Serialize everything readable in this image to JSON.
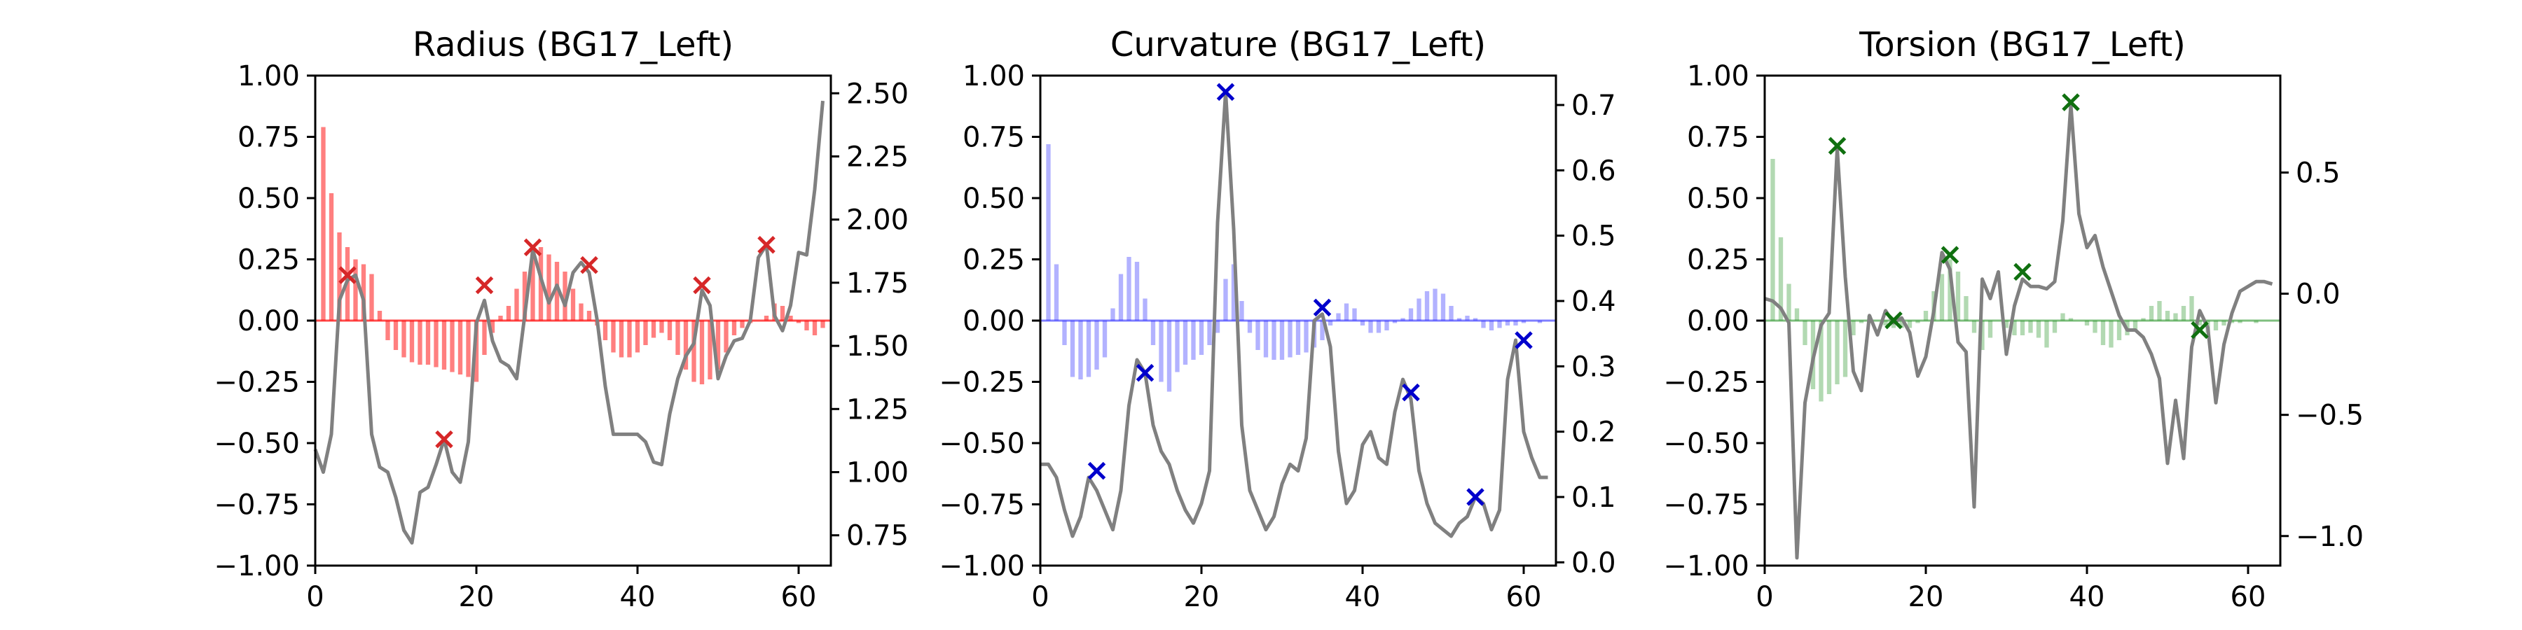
{
  "chart_data": [
    {
      "type": "bar",
      "title": "Radius (BG17_Left)",
      "color": "#ff0000",
      "bar_alpha": 0.5,
      "xlim": [
        0,
        64
      ],
      "x_ticks": [
        "0",
        "20",
        "40",
        "60"
      ],
      "ylim": [
        -1.0,
        1.0
      ],
      "y_ticks": [
        "−1.00",
        "−0.75",
        "−0.50",
        "−0.25",
        "0.00",
        "0.25",
        "0.50",
        "0.75",
        "1.00"
      ],
      "y2lim": [
        0.63,
        2.57
      ],
      "y2_ticks": [
        "0.75",
        "1.00",
        "1.25",
        "1.50",
        "1.75",
        "2.00",
        "2.25",
        "2.50"
      ],
      "bars": [
        0.0,
        0.79,
        0.52,
        0.36,
        0.3,
        0.25,
        0.23,
        0.19,
        0.04,
        -0.08,
        -0.12,
        -0.15,
        -0.17,
        -0.18,
        -0.18,
        -0.19,
        -0.2,
        -0.21,
        -0.22,
        -0.23,
        -0.25,
        -0.14,
        -0.05,
        0.02,
        0.06,
        0.13,
        0.2,
        0.29,
        0.3,
        0.27,
        0.24,
        0.2,
        0.13,
        0.07,
        0.04,
        -0.02,
        -0.08,
        -0.13,
        -0.15,
        -0.15,
        -0.13,
        -0.1,
        -0.07,
        -0.05,
        -0.08,
        -0.14,
        -0.2,
        -0.25,
        -0.26,
        -0.24,
        -0.2,
        -0.13,
        -0.06,
        -0.03,
        -0.01,
        0.0,
        0.02,
        0.07,
        0.06,
        0.02,
        -0.01,
        -0.04,
        -0.06,
        -0.03
      ],
      "line": [
        1.09,
        1.0,
        1.15,
        1.68,
        1.76,
        1.78,
        1.68,
        1.15,
        1.02,
        1.0,
        0.9,
        0.77,
        0.72,
        0.92,
        0.94,
        1.03,
        1.13,
        1.0,
        0.96,
        1.12,
        1.59,
        1.68,
        1.52,
        1.44,
        1.42,
        1.37,
        1.62,
        1.88,
        1.77,
        1.67,
        1.74,
        1.66,
        1.79,
        1.83,
        1.79,
        1.6,
        1.34,
        1.15,
        1.15,
        1.15,
        1.15,
        1.12,
        1.04,
        1.03,
        1.23,
        1.37,
        1.46,
        1.51,
        1.72,
        1.66,
        1.37,
        1.46,
        1.52,
        1.53,
        1.6,
        1.85,
        1.9,
        1.62,
        1.56,
        1.66,
        1.87,
        1.86,
        2.12,
        2.47
      ],
      "markers_x": [
        4,
        16,
        21,
        27,
        34,
        48,
        56
      ],
      "markers_y2": [
        1.78,
        1.13,
        1.74,
        1.89,
        1.82,
        1.74,
        1.9
      ],
      "xlabel": "",
      "ylabel": ""
    },
    {
      "type": "bar",
      "title": "Curvature (BG17_Left)",
      "color": "#0000ff",
      "bar_alpha": 0.3,
      "xlim": [
        0,
        64
      ],
      "x_ticks": [
        "0",
        "20",
        "40",
        "60"
      ],
      "ylim": [
        -1.0,
        1.0
      ],
      "y_ticks": [
        "−1.00",
        "−0.75",
        "−0.50",
        "−0.25",
        "0.00",
        "0.25",
        "0.50",
        "0.75",
        "1.00"
      ],
      "y2lim": [
        -0.005,
        0.745
      ],
      "y2_ticks": [
        "0.0",
        "0.1",
        "0.2",
        "0.3",
        "0.4",
        "0.5",
        "0.6",
        "0.7"
      ],
      "bars": [
        0.0,
        0.72,
        0.23,
        -0.1,
        -0.23,
        -0.24,
        -0.23,
        -0.2,
        -0.15,
        0.05,
        0.19,
        0.26,
        0.24,
        0.09,
        -0.1,
        -0.25,
        -0.29,
        -0.21,
        -0.18,
        -0.16,
        -0.14,
        -0.1,
        -0.05,
        0.17,
        0.23,
        0.08,
        -0.05,
        -0.12,
        -0.15,
        -0.16,
        -0.16,
        -0.15,
        -0.14,
        -0.13,
        -0.11,
        -0.08,
        -0.02,
        0.03,
        0.07,
        0.05,
        -0.02,
        -0.05,
        -0.05,
        -0.04,
        -0.01,
        0.01,
        0.05,
        0.09,
        0.12,
        0.13,
        0.11,
        0.06,
        0.01,
        0.02,
        0.01,
        -0.03,
        -0.04,
        -0.03,
        -0.02,
        -0.02,
        -0.01,
        0.0,
        -0.01,
        0.0
      ],
      "line": [
        0.15,
        0.15,
        0.13,
        0.08,
        0.04,
        0.07,
        0.13,
        0.11,
        0.08,
        0.05,
        0.11,
        0.24,
        0.31,
        0.29,
        0.21,
        0.17,
        0.15,
        0.11,
        0.08,
        0.06,
        0.09,
        0.14,
        0.52,
        0.72,
        0.51,
        0.21,
        0.11,
        0.08,
        0.05,
        0.07,
        0.12,
        0.15,
        0.14,
        0.19,
        0.37,
        0.38,
        0.33,
        0.17,
        0.09,
        0.11,
        0.18,
        0.2,
        0.16,
        0.15,
        0.23,
        0.28,
        0.25,
        0.14,
        0.09,
        0.06,
        0.05,
        0.04,
        0.06,
        0.07,
        0.1,
        0.09,
        0.05,
        0.08,
        0.28,
        0.34,
        0.2,
        0.16,
        0.13,
        0.13
      ],
      "markers_x": [
        7,
        13,
        23,
        35,
        46,
        54,
        60
      ],
      "markers_y2": [
        0.14,
        0.29,
        0.72,
        0.39,
        0.26,
        0.1,
        0.34
      ],
      "xlabel": "",
      "ylabel": ""
    },
    {
      "type": "bar",
      "title": "Torsion (BG17_Left)",
      "color": "#008000",
      "bar_alpha": 0.3,
      "xlim": [
        0,
        64
      ],
      "x_ticks": [
        "0",
        "20",
        "40",
        "60"
      ],
      "ylim": [
        -1.0,
        1.0
      ],
      "y_ticks": [
        "−1.00",
        "−0.75",
        "−0.50",
        "−0.25",
        "0.00",
        "0.25",
        "0.50",
        "0.75",
        "1.00"
      ],
      "y2lim": [
        -1.122,
        0.9
      ],
      "y2_ticks": [
        "−1.0",
        "−0.5",
        "0.0",
        "0.5"
      ],
      "bars": [
        0.0,
        0.66,
        0.34,
        0.15,
        0.05,
        -0.1,
        -0.28,
        -0.33,
        -0.3,
        -0.26,
        -0.23,
        -0.06,
        -0.01,
        0.02,
        0.0,
        -0.02,
        -0.03,
        -0.03,
        -0.03,
        -0.01,
        0.04,
        0.12,
        0.19,
        0.25,
        0.2,
        0.1,
        -0.05,
        -0.12,
        -0.07,
        0.0,
        -0.03,
        -0.06,
        -0.06,
        -0.05,
        -0.07,
        -0.11,
        -0.05,
        0.03,
        0.01,
        0.0,
        -0.02,
        -0.05,
        -0.1,
        -0.11,
        -0.08,
        -0.06,
        -0.04,
        0.01,
        0.06,
        0.08,
        0.04,
        0.03,
        0.06,
        0.1,
        -0.02,
        -0.05,
        -0.04,
        -0.02,
        -0.01,
        -0.01,
        0.0,
        -0.01,
        0.0,
        0.0
      ],
      "line": [
        -0.02,
        -0.03,
        -0.06,
        -0.12,
        -1.09,
        -0.45,
        -0.27,
        -0.13,
        -0.08,
        0.6,
        0.07,
        -0.32,
        -0.4,
        -0.09,
        -0.17,
        -0.07,
        -0.12,
        -0.1,
        -0.16,
        -0.34,
        -0.26,
        -0.07,
        0.17,
        0.1,
        -0.2,
        -0.24,
        -0.88,
        0.06,
        -0.02,
        0.09,
        -0.25,
        -0.05,
        0.06,
        0.03,
        0.03,
        0.02,
        0.05,
        0.3,
        0.78,
        0.33,
        0.19,
        0.24,
        0.11,
        0.01,
        -0.09,
        -0.15,
        -0.15,
        -0.18,
        -0.25,
        -0.35,
        -0.7,
        -0.44,
        -0.68,
        -0.22,
        -0.07,
        -0.14,
        -0.45,
        -0.21,
        -0.08,
        0.01,
        0.03,
        0.05,
        0.05,
        0.04
      ],
      "markers_x": [
        9,
        16,
        23,
        32,
        38,
        54
      ],
      "markers_y2": [
        0.61,
        -0.11,
        0.16,
        0.09,
        0.79,
        -0.15
      ],
      "xlabel": "",
      "ylabel": ""
    }
  ]
}
